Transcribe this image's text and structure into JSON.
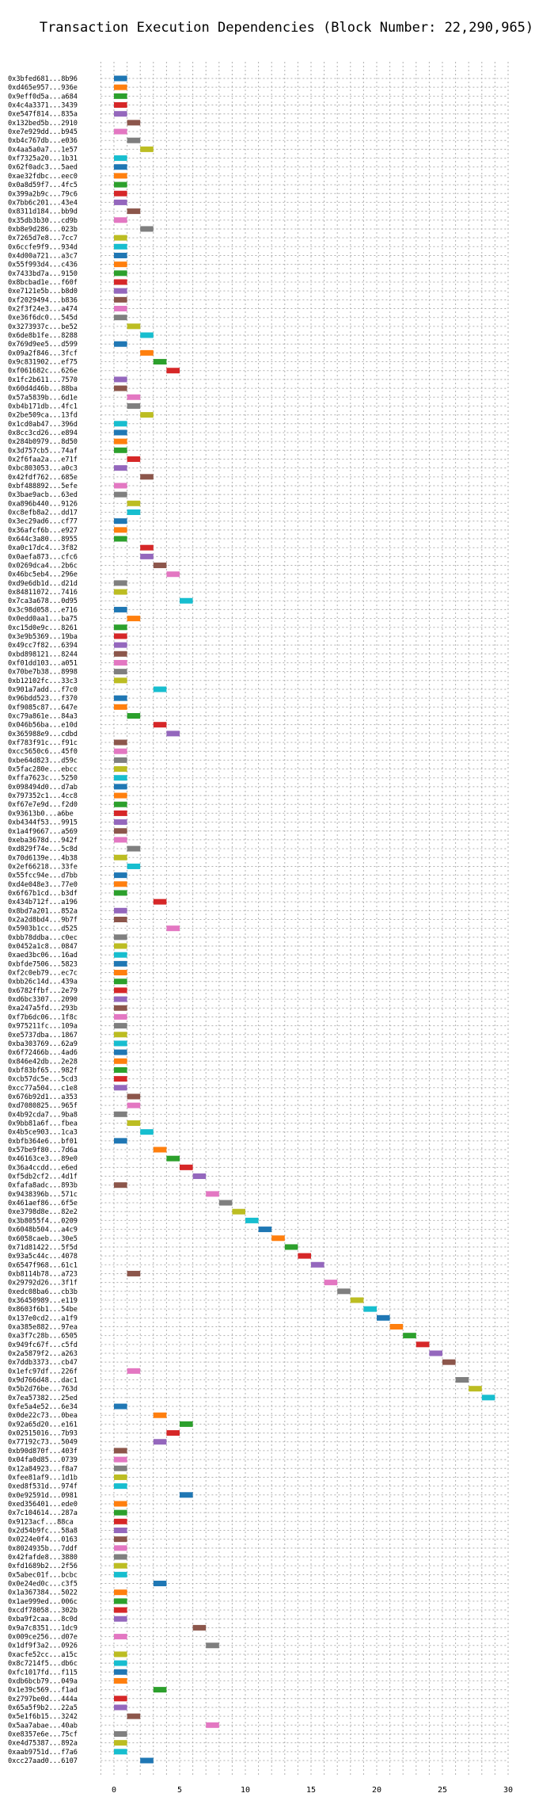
{
  "chart_data": {
    "type": "gantt",
    "title": "Transaction Execution Dependencies (Block Number: 22,290,965)",
    "xlabel": "",
    "ylabel": "",
    "xlim": [
      -2.5,
      31
    ],
    "xticks": [
      0,
      5,
      10,
      15,
      20,
      25,
      30
    ],
    "grid": true,
    "bar_width": 1,
    "palette": [
      "#1f77b4",
      "#ff7f0e",
      "#2ca02c",
      "#d62728",
      "#9467bd",
      "#8c564b",
      "#e377c2",
      "#7f7f7f",
      "#bcbd22",
      "#17becf"
    ],
    "transactions": [
      {
        "label": "0x3bfed681...8b96",
        "start": 0
      },
      {
        "label": "0xd465e957...936e",
        "start": 0
      },
      {
        "label": "0x9eff0d5a...a684",
        "start": 0
      },
      {
        "label": "0x4c4a3371...3439",
        "start": 0
      },
      {
        "label": "0xe547f814...835a",
        "start": 0
      },
      {
        "label": "0x132bed5b...2910",
        "start": 1
      },
      {
        "label": "0xe7e929dd...b945",
        "start": 0
      },
      {
        "label": "0xb4c767db...e036",
        "start": 1
      },
      {
        "label": "0x4aa5a0a7...1e57",
        "start": 2
      },
      {
        "label": "0xf7325a20...1b31",
        "start": 0
      },
      {
        "label": "0x62f0adc3...5aed",
        "start": 0
      },
      {
        "label": "0xae32fdbc...eec0",
        "start": 0
      },
      {
        "label": "0x0a8d59f7...4fc5",
        "start": 0
      },
      {
        "label": "0x399a2b9c...79c6",
        "start": 0
      },
      {
        "label": "0x7bb6c201...43e4",
        "start": 0
      },
      {
        "label": "0x8311d184...bb9d",
        "start": 1
      },
      {
        "label": "0x35db3b30...cd9b",
        "start": 0
      },
      {
        "label": "0xb8e9d286...023b",
        "start": 2
      },
      {
        "label": "0x7265d7e8...7cc7",
        "start": 0
      },
      {
        "label": "0x6ccfe9f9...934d",
        "start": 0
      },
      {
        "label": "0x4d00a721...a3c7",
        "start": 0
      },
      {
        "label": "0x55f993d4...c436",
        "start": 0
      },
      {
        "label": "0x7433bd7a...9150",
        "start": 0
      },
      {
        "label": "0x8bcbad1e...f60f",
        "start": 0
      },
      {
        "label": "0xe7121e5b...b8d0",
        "start": 0
      },
      {
        "label": "0xf2029494...b836",
        "start": 0
      },
      {
        "label": "0x2f3f24e3...a474",
        "start": 0
      },
      {
        "label": "0xe36f6dc0...545d",
        "start": 0
      },
      {
        "label": "0x3273937c...be52",
        "start": 1
      },
      {
        "label": "0x6de8b1fe...8288",
        "start": 2
      },
      {
        "label": "0x769d9ee5...d599",
        "start": 0
      },
      {
        "label": "0x09a2f846...3fcf",
        "start": 2
      },
      {
        "label": "0x9c831902...ef75",
        "start": 3
      },
      {
        "label": "0xf061682c...626e",
        "start": 4
      },
      {
        "label": "0x1fc2b611...7570",
        "start": 0
      },
      {
        "label": "0x60d4d46b...88ba",
        "start": 0
      },
      {
        "label": "0x57a5839b...6d1e",
        "start": 1
      },
      {
        "label": "0xb4b171db...4fc1",
        "start": 1
      },
      {
        "label": "0x2be509ca...13fd",
        "start": 2
      },
      {
        "label": "0x1cd0ab47...396d",
        "start": 0
      },
      {
        "label": "0x8cc3cd26...e894",
        "start": 0
      },
      {
        "label": "0x284b0979...8d50",
        "start": 0
      },
      {
        "label": "0x3d757cb5...74af",
        "start": 0
      },
      {
        "label": "0x2f6faa2a...e71f",
        "start": 1
      },
      {
        "label": "0xbc803053...a0c3",
        "start": 0
      },
      {
        "label": "0x42fdf762...685e",
        "start": 2
      },
      {
        "label": "0xbf488892...5efe",
        "start": 0
      },
      {
        "label": "0x3bae9acb...63ed",
        "start": 0
      },
      {
        "label": "0xa896b440...9126",
        "start": 1
      },
      {
        "label": "0xc8efb8a2...dd17",
        "start": 1
      },
      {
        "label": "0x3ec29ad6...cf77",
        "start": 0
      },
      {
        "label": "0x36afcf6b...e927",
        "start": 0
      },
      {
        "label": "0x644c3a80...8955",
        "start": 0
      },
      {
        "label": "0xa0c17dc4...3f82",
        "start": 2
      },
      {
        "label": "0x0aefa873...cfc6",
        "start": 2
      },
      {
        "label": "0x0269dca4...2b6c",
        "start": 3
      },
      {
        "label": "0x46bc5eb4...296e",
        "start": 4
      },
      {
        "label": "0xd9e6db1d...d21d",
        "start": 0
      },
      {
        "label": "0x84811072...7416",
        "start": 0
      },
      {
        "label": "0x7ca3a678...0d95",
        "start": 5
      },
      {
        "label": "0x3c98d058...e716",
        "start": 0
      },
      {
        "label": "0x0edd0aa1...ba75",
        "start": 1
      },
      {
        "label": "0xc15d0e9c...8261",
        "start": 0
      },
      {
        "label": "0x3e9b5369...19ba",
        "start": 0
      },
      {
        "label": "0x49cc7f82...6394",
        "start": 0
      },
      {
        "label": "0xbd898121...8244",
        "start": 0
      },
      {
        "label": "0xf01dd103...a051",
        "start": 0
      },
      {
        "label": "0x70be7b38...8998",
        "start": 0
      },
      {
        "label": "0xb12102fc...33c3",
        "start": 0
      },
      {
        "label": "0x901a7add...f7c0",
        "start": 3
      },
      {
        "label": "0x96bdd523...f370",
        "start": 0
      },
      {
        "label": "0xf9085c87...647e",
        "start": 0
      },
      {
        "label": "0xc79a861e...84a3",
        "start": 1
      },
      {
        "label": "0x046b56ba...e10d",
        "start": 3
      },
      {
        "label": "0x365988e9...cdbd",
        "start": 4
      },
      {
        "label": "0xf783f91c...f91c",
        "start": 0
      },
      {
        "label": "0xcc5650c6...45f0",
        "start": 0
      },
      {
        "label": "0xbe64d823...d59c",
        "start": 0
      },
      {
        "label": "0x5fac280e...ebcc",
        "start": 0
      },
      {
        "label": "0xffa7623c...5250",
        "start": 0
      },
      {
        "label": "0x098494d0...d7ab",
        "start": 0
      },
      {
        "label": "0x797352c1...4cc8",
        "start": 0
      },
      {
        "label": "0xf67e7e9d...f2d0",
        "start": 0
      },
      {
        "label": "0x93613b0...a6be",
        "start": 0
      },
      {
        "label": "0xb4344f53...9915",
        "start": 0
      },
      {
        "label": "0x1a4f9667...a569",
        "start": 0
      },
      {
        "label": "0xeba3678d...942f",
        "start": 0
      },
      {
        "label": "0xd829f74e...5c8d",
        "start": 1
      },
      {
        "label": "0x70d6139e...4b38",
        "start": 0
      },
      {
        "label": "0x2ef66218...33fe",
        "start": 1
      },
      {
        "label": "0x55fcc94e...d7bb",
        "start": 0
      },
      {
        "label": "0xd4e048e3...77e0",
        "start": 0
      },
      {
        "label": "0x6f67b1cd...b3df",
        "start": 0
      },
      {
        "label": "0x434b712f...a196",
        "start": 3
      },
      {
        "label": "0x8bd7a201...852a",
        "start": 0
      },
      {
        "label": "0x2a2d8bd4...9b7f",
        "start": 0
      },
      {
        "label": "0x5903b1cc...d525",
        "start": 4
      },
      {
        "label": "0xbb78ddba...c0ec",
        "start": 0
      },
      {
        "label": "0x0452a1c8...0847",
        "start": 0
      },
      {
        "label": "0xaed3bc06...16ad",
        "start": 0
      },
      {
        "label": "0xbfde7506...5823",
        "start": 0
      },
      {
        "label": "0xf2c0eb79...ec7c",
        "start": 0
      },
      {
        "label": "0xbb26c14d...439a",
        "start": 0
      },
      {
        "label": "0x6782ffbf...2e79",
        "start": 0
      },
      {
        "label": "0xd6bc3307...2090",
        "start": 0
      },
      {
        "label": "0xa247a5fd...293b",
        "start": 0
      },
      {
        "label": "0xf7b6dc06...1f8c",
        "start": 0
      },
      {
        "label": "0x975211fc...109a",
        "start": 0
      },
      {
        "label": "0xe5737dba...1867",
        "start": 0
      },
      {
        "label": "0xba303769...62a9",
        "start": 0
      },
      {
        "label": "0x6f72466b...4ad6",
        "start": 0
      },
      {
        "label": "0x846e42db...2e28",
        "start": 0
      },
      {
        "label": "0xbf83bf65...982f",
        "start": 0
      },
      {
        "label": "0xcb57dc5e...5cd3",
        "start": 0
      },
      {
        "label": "0xcc77a504...c1e8",
        "start": 0
      },
      {
        "label": "0x676b92d1...a353",
        "start": 1
      },
      {
        "label": "0xd7080825...965f",
        "start": 1
      },
      {
        "label": "0x4b92cda7...9ba8",
        "start": 0
      },
      {
        "label": "0x9bb81a6f...fbea",
        "start": 1
      },
      {
        "label": "0x4b5ce903...1ca3",
        "start": 2
      },
      {
        "label": "0xbfb364e6...bf01",
        "start": 0
      },
      {
        "label": "0x57be9f80...7d6a",
        "start": 3
      },
      {
        "label": "0x46163ce3...89e0",
        "start": 4
      },
      {
        "label": "0x36a4ccdd...e6ed",
        "start": 5
      },
      {
        "label": "0xf5db2cf2...4d1f",
        "start": 6
      },
      {
        "label": "0xfafa8adc...893b",
        "start": 0
      },
      {
        "label": "0x9438396b...571c",
        "start": 7
      },
      {
        "label": "0x461aef86...6f5e",
        "start": 8
      },
      {
        "label": "0xe3798d8e...82e2",
        "start": 9
      },
      {
        "label": "0x3b8055f4...0209",
        "start": 10
      },
      {
        "label": "0x6048b504...a4c9",
        "start": 11
      },
      {
        "label": "0x6058caeb...30e5",
        "start": 12
      },
      {
        "label": "0x71d81422...5f5d",
        "start": 13
      },
      {
        "label": "0x93a5c44c...4078",
        "start": 14
      },
      {
        "label": "0x6547f968...61c1",
        "start": 15
      },
      {
        "label": "0xb8114b78...a723",
        "start": 1
      },
      {
        "label": "0x29792d26...3f1f",
        "start": 16
      },
      {
        "label": "0xedc08ba6...cb3b",
        "start": 17
      },
      {
        "label": "0x36450989...e119",
        "start": 18
      },
      {
        "label": "0x8603f6b1...54be",
        "start": 19
      },
      {
        "label": "0x137e0cd2...a1f9",
        "start": 20
      },
      {
        "label": "0xa385e882...97ea",
        "start": 21
      },
      {
        "label": "0xa3f7c28b...6505",
        "start": 22
      },
      {
        "label": "0x949fc67f...c5fd",
        "start": 23
      },
      {
        "label": "0x2a5879f2...a263",
        "start": 24
      },
      {
        "label": "0x7ddb3373...cb47",
        "start": 25
      },
      {
        "label": "0x1efc97df...226f",
        "start": 1
      },
      {
        "label": "0x9d766d48...dac1",
        "start": 26
      },
      {
        "label": "0x5b2d76be...763d",
        "start": 27
      },
      {
        "label": "0x7ea57382...25ed",
        "start": 28
      },
      {
        "label": "0xfe5a4e52...6e34",
        "start": 0
      },
      {
        "label": "0x0de22c73...0bea",
        "start": 3
      },
      {
        "label": "0x92a65d20...e161",
        "start": 5
      },
      {
        "label": "0x02515016...7b93",
        "start": 4
      },
      {
        "label": "0x77192c73...5049",
        "start": 3
      },
      {
        "label": "0xb90d870f...403f",
        "start": 0
      },
      {
        "label": "0x04fa0d85...0739",
        "start": 0
      },
      {
        "label": "0x12a84923...f8a7",
        "start": 0
      },
      {
        "label": "0xfee81af9...1d1b",
        "start": 0
      },
      {
        "label": "0xed8f531d...974f",
        "start": 0
      },
      {
        "label": "0x0e92591d...0981",
        "start": 5
      },
      {
        "label": "0xed356401...ede0",
        "start": 0
      },
      {
        "label": "0x7c104614...287a",
        "start": 0
      },
      {
        "label": "0x9123acf...88ca",
        "start": 0
      },
      {
        "label": "0x2d54b9fc...58a8",
        "start": 0
      },
      {
        "label": "0x0224e0f4...0163",
        "start": 0
      },
      {
        "label": "0x8024935b...7ddf",
        "start": 0
      },
      {
        "label": "0x42fafde8...3880",
        "start": 0
      },
      {
        "label": "0xfd1689b2...2f56",
        "start": 0
      },
      {
        "label": "0x5abec01f...bcbc",
        "start": 0
      },
      {
        "label": "0x0e24ed0c...c3f5",
        "start": 3
      },
      {
        "label": "0x1a367384...5022",
        "start": 0
      },
      {
        "label": "0x1ae999ed...006c",
        "start": 0
      },
      {
        "label": "0xcdf78058...302b",
        "start": 0
      },
      {
        "label": "0xba9f2caa...8c0d",
        "start": 0
      },
      {
        "label": "0x9a7c8351...1dc9",
        "start": 6
      },
      {
        "label": "0x009ce256...d07e",
        "start": 0
      },
      {
        "label": "0x1df9f3a2...0926",
        "start": 7
      },
      {
        "label": "0xacfe52cc...a15c",
        "start": 0
      },
      {
        "label": "0x8c7214f5...db6c",
        "start": 0
      },
      {
        "label": "0xfc1017fd...f115",
        "start": 0
      },
      {
        "label": "0xdb6bcb79...049a",
        "start": 0
      },
      {
        "label": "0x1e39c569...f1ad",
        "start": 3
      },
      {
        "label": "0x2797be0d...444a",
        "start": 0
      },
      {
        "label": "0x65a5f9b2...22a5",
        "start": 0
      },
      {
        "label": "0x5e1f6b15...3242",
        "start": 1
      },
      {
        "label": "0x5aa7abae...40ab",
        "start": 7
      },
      {
        "label": "0xe8357e6e...75cf",
        "start": 0
      },
      {
        "label": "0xe4d75387...892a",
        "start": 0
      },
      {
        "label": "0xaab9751d...f7a6",
        "start": 0
      },
      {
        "label": "0xcc27aad0...6107",
        "start": 2
      }
    ]
  }
}
